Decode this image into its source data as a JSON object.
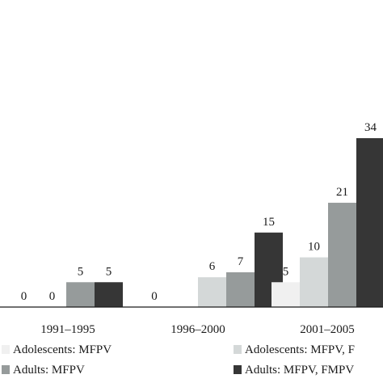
{
  "chart_data": {
    "type": "bar",
    "categories": [
      "1991–1995",
      "1996–2000",
      "2001–2005"
    ],
    "series": [
      {
        "name": "Adolescents: MFPV",
        "color": "#f0f0f0",
        "values": [
          0,
          0,
          5
        ]
      },
      {
        "name": "Adolescents: MFPV, F",
        "color": "#d4d8d8",
        "values": [
          0,
          6,
          10
        ]
      },
      {
        "name": "Adults: MFPV",
        "color": "#969b9b",
        "values": [
          5,
          7,
          21
        ]
      },
      {
        "name": "Adults: MFPV, FMPV",
        "color": "#363636",
        "values": [
          5,
          15,
          34
        ]
      }
    ],
    "ylim": [
      0,
      34
    ],
    "grid": false,
    "legend_position": "bottom"
  }
}
